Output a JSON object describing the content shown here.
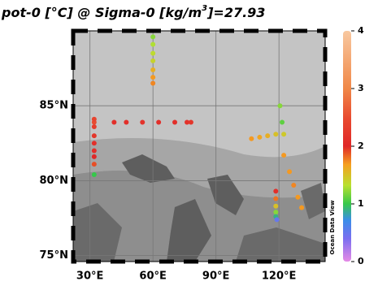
{
  "map": {
    "title": {
      "text": "pot-0 [°C] @ Sigma-0 [kg/m",
      "sup": "3",
      "tail": "]=27.93"
    },
    "xlim": [
      22,
      142
    ],
    "ylim": [
      74.6,
      90
    ],
    "lon_ticks": [
      {
        "value": 30,
        "label": "30°E"
      },
      {
        "value": 60,
        "label": "60°E"
      },
      {
        "value": 90,
        "label": "90°E"
      },
      {
        "value": 120,
        "label": "120°E"
      }
    ],
    "lat_ticks": [
      {
        "value": 85,
        "label": "85°N"
      },
      {
        "value": 80,
        "label": "80°N"
      },
      {
        "value": 75,
        "label": "75°N"
      }
    ],
    "colorbar": {
      "clim": [
        0,
        4
      ],
      "ticks": [
        0,
        1,
        2,
        3,
        4
      ]
    },
    "watermark": "Ocean Data View",
    "points": {
      "lon": [
        60,
        60,
        60,
        60,
        60,
        60,
        60,
        32,
        41.5,
        47.3,
        55,
        62.7,
        70.4,
        76.2,
        78.1,
        32,
        32,
        32,
        32,
        32,
        32,
        32,
        32,
        106.9,
        110.8,
        114.6,
        118.5,
        122.3,
        120.5,
        121.5,
        122.3,
        125,
        127,
        129,
        130.8,
        118.5,
        118.5,
        118.5,
        118.5,
        118.5,
        119
      ],
      "lat": [
        89.6,
        89.1,
        88.5,
        88.0,
        87.4,
        86.9,
        86.5,
        83.9,
        83.9,
        83.9,
        83.9,
        83.9,
        83.9,
        83.9,
        83.9,
        84.1,
        83.6,
        83.0,
        82.5,
        82.0,
        81.6,
        81.1,
        80.4,
        82.8,
        82.9,
        83.0,
        83.1,
        83.1,
        85.0,
        83.9,
        81.7,
        80.6,
        79.7,
        78.9,
        78.2,
        79.3,
        78.8,
        78.3,
        77.9,
        77.6,
        77.4
      ],
      "values": [
        1.2,
        1.3,
        1.35,
        1.4,
        1.6,
        1.7,
        1.75,
        2.5,
        2.1,
        2.1,
        2.15,
        2.1,
        2.1,
        2.15,
        2.2,
        2.4,
        2.3,
        2.2,
        2.1,
        2.1,
        2.0,
        1.9,
        1.0,
        1.7,
        1.65,
        1.6,
        1.5,
        1.45,
        1.2,
        1.1,
        1.7,
        1.7,
        1.75,
        1.7,
        1.7,
        2.1,
        1.8,
        1.5,
        1.2,
        0.9,
        0.5
      ]
    }
  }
}
